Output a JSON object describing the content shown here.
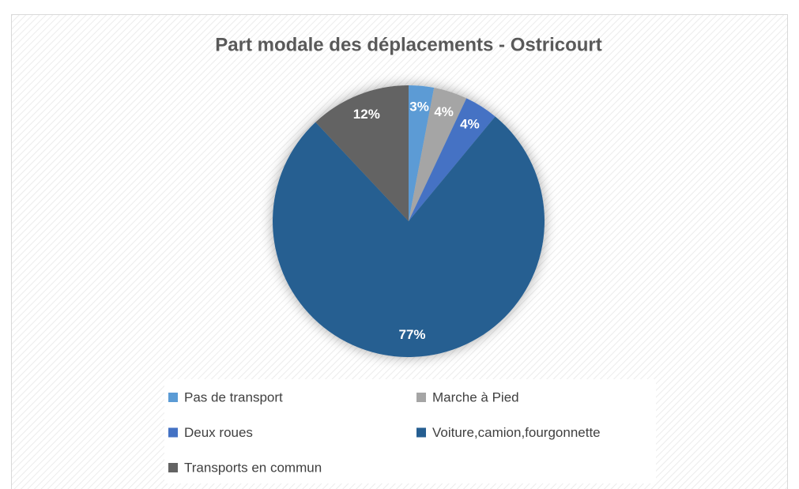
{
  "chart_data": {
    "type": "pie",
    "title": "Part modale des déplacements - Ostricourt",
    "categories": [
      "Pas de transport",
      "Marche à Pied",
      "Deux roues",
      "Voiture,camion,fourgonnette",
      "Transports en commun"
    ],
    "values": [
      3,
      4,
      4,
      77,
      12
    ],
    "value_labels": [
      "3%",
      "4%",
      "4%",
      "77%",
      "12%"
    ],
    "colors": [
      "#5b9bd5",
      "#a5a5a5",
      "#4472c4",
      "#255e91",
      "#636363"
    ],
    "legend": "bottom"
  }
}
